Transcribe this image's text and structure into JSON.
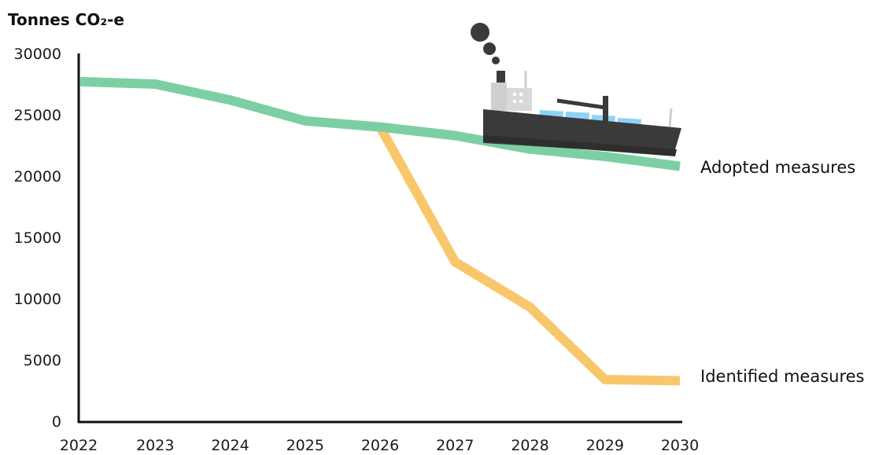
{
  "chart_data": {
    "type": "line",
    "ylabel": "Tonnes CO₂-e",
    "xlabel": "",
    "title": "",
    "x": [
      2022,
      2023,
      2024,
      2025,
      2026,
      2027,
      2028,
      2029,
      2030
    ],
    "xlim": [
      2022,
      2030
    ],
    "ylim": [
      0,
      30000
    ],
    "yticks": [
      0,
      5000,
      10000,
      15000,
      20000,
      25000,
      30000
    ],
    "grid": false,
    "series": [
      {
        "name": "Adopted measures",
        "color": "#7ccfa3",
        "x": [
          2022,
          2023,
          2024,
          2025,
          2026,
          2027,
          2028,
          2029,
          2030
        ],
        "values": [
          27700,
          27500,
          26200,
          24500,
          24000,
          23300,
          22200,
          21600,
          20800
        ]
      },
      {
        "name": "Identified measures",
        "color": "#f9c76b",
        "x": [
          2026,
          2027,
          2028,
          2029,
          2030
        ],
        "values": [
          24000,
          13000,
          9300,
          3400,
          3300
        ]
      }
    ],
    "legend": "inline-right",
    "illustration": "ship-icon"
  },
  "colors": {
    "axis": "#111111",
    "adopted": "#7ccfa3",
    "identified": "#f9c76b",
    "ship_hull": "#3a3a3a",
    "ship_superstructure": "#cfcfcf",
    "ship_containers": "#8fd3f4"
  }
}
